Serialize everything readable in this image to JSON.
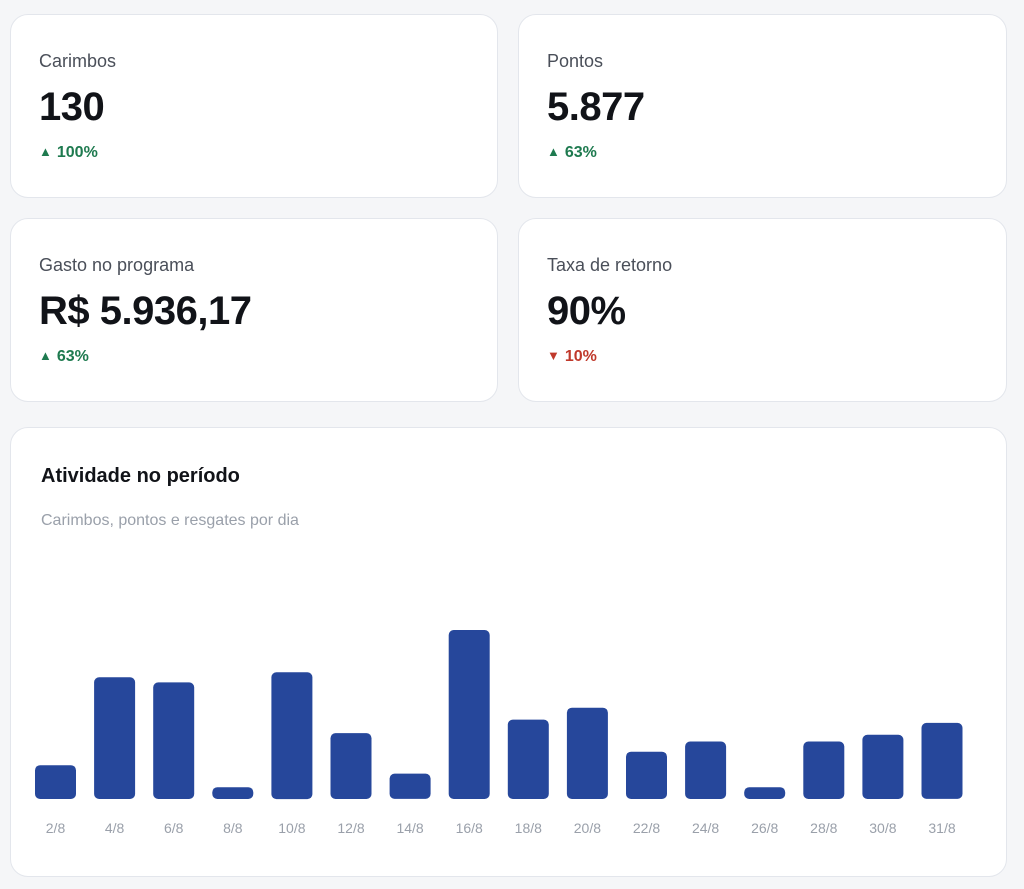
{
  "colors": {
    "up": "#1e7a4f",
    "down": "#c0392b",
    "bar": "#26479b",
    "tick": "#9aa0aa"
  },
  "stats": [
    {
      "label": "Carimbos",
      "value": "130",
      "delta": "100%",
      "direction": "up",
      "arrow_icon": "triangle-up-icon"
    },
    {
      "label": "Pontos",
      "value": "5.877",
      "delta": "63%",
      "direction": "up",
      "arrow_icon": "triangle-up-icon"
    },
    {
      "label": "Gasto no programa",
      "value": "R$ 5.936,17",
      "delta": "63%",
      "direction": "up",
      "arrow_icon": "triangle-up-icon"
    },
    {
      "label": "Taxa de retorno",
      "value": "90%",
      "delta": "10%",
      "direction": "down",
      "arrow_icon": "triangle-down-icon"
    }
  ],
  "chart": {
    "title": "Atividade no período",
    "subtitle": "Carimbos, pontos e resgates por dia"
  },
  "chart_data": {
    "type": "bar",
    "title": "Atividade no período",
    "subtitle": "Carimbos, pontos e resgates por dia",
    "categories": [
      "2/8",
      "4/8",
      "6/8",
      "8/8",
      "10/8",
      "12/8",
      "14/8",
      "16/8",
      "18/8",
      "20/8",
      "22/8",
      "24/8",
      "26/8",
      "28/8",
      "30/8",
      "31/8"
    ],
    "values": [
      20,
      72,
      69,
      7,
      75,
      39,
      15,
      100,
      47,
      54,
      28,
      34,
      7,
      34,
      38,
      45
    ],
    "ylim": [
      0,
      100
    ],
    "grid": false,
    "legend": "none"
  }
}
